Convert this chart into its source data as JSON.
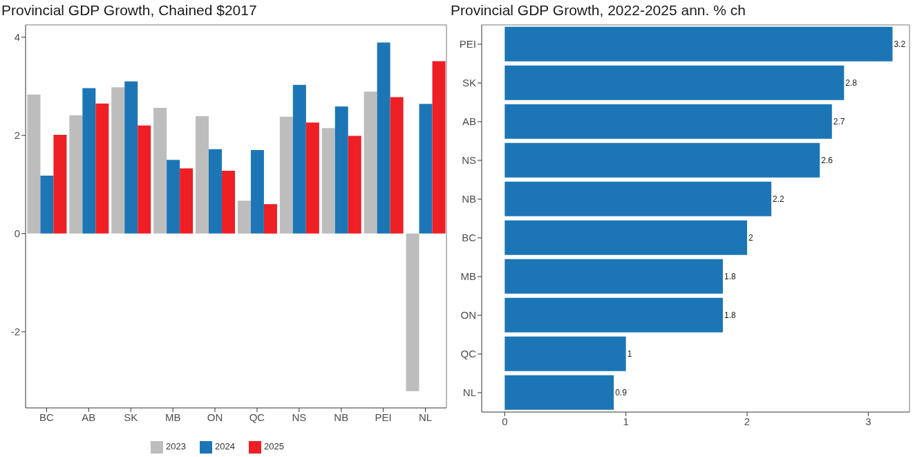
{
  "chart_data": [
    {
      "type": "bar",
      "title": "Provincial GDP Growth, Chained $2017",
      "categories": [
        "BC",
        "AB",
        "SK",
        "MB",
        "ON",
        "QC",
        "NS",
        "NB",
        "PEI",
        "NL"
      ],
      "series": [
        {
          "name": "2023",
          "color": "#bebdbe",
          "values": [
            2.83,
            2.41,
            2.98,
            2.56,
            2.39,
            0.67,
            2.38,
            2.15,
            2.89,
            -3.21
          ]
        },
        {
          "name": "2024",
          "color": "#1c76b6",
          "values": [
            1.18,
            2.96,
            3.1,
            1.5,
            1.72,
            1.7,
            3.03,
            2.59,
            3.89,
            2.64
          ]
        },
        {
          "name": "2025",
          "color": "#ee1f25",
          "values": [
            2.01,
            2.65,
            2.2,
            1.33,
            1.28,
            0.6,
            2.26,
            1.99,
            2.78,
            3.51
          ]
        }
      ],
      "ylim": [
        -3.55,
        4.25
      ],
      "yticks": [
        -2,
        0,
        2,
        4
      ],
      "legend": "bottom"
    },
    {
      "type": "bar",
      "orientation": "horizontal",
      "title": "Provincial GDP Growth, 2022-2025 ann. % ch",
      "categories": [
        "PEI",
        "SK",
        "AB",
        "NS",
        "NB",
        "BC",
        "MB",
        "ON",
        "QC",
        "NL"
      ],
      "values": [
        3.2,
        2.8,
        2.7,
        2.6,
        2.2,
        2,
        1.8,
        1.8,
        1,
        0.9
      ],
      "color": "#1c76b6",
      "xlim": [
        -0.19,
        3.34
      ],
      "xticks": [
        0,
        1,
        2,
        3
      ],
      "data_labels": true
    }
  ]
}
